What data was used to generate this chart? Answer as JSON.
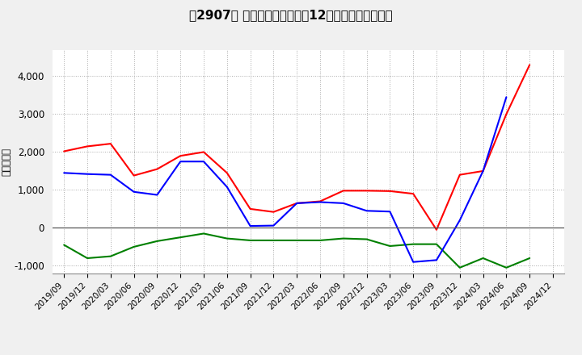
{
  "title": "　2907、 キャッシュフローの12か月移動合計の推移",
  "ylabel": "（百万円）",
  "x_labels": [
    "2019/09",
    "2019/12",
    "2020/03",
    "2020/06",
    "2020/09",
    "2020/12",
    "2021/03",
    "2021/06",
    "2021/09",
    "2021/12",
    "2022/03",
    "2022/06",
    "2022/09",
    "2022/12",
    "2023/03",
    "2023/06",
    "2023/09",
    "2023/12",
    "2024/03",
    "2024/06",
    "2024/09",
    "2024/12"
  ],
  "operating_cf": [
    2020,
    2150,
    2220,
    1380,
    1550,
    1900,
    2000,
    1450,
    500,
    420,
    650,
    700,
    980,
    980,
    970,
    900,
    -50,
    1400,
    1500,
    3000,
    4300,
    null
  ],
  "investing_cf": [
    -450,
    -800,
    -750,
    -500,
    -350,
    -250,
    -150,
    -280,
    -330,
    -330,
    -330,
    -330,
    -280,
    -300,
    -480,
    -430,
    -430,
    -1050,
    -800,
    -1050,
    -800,
    null
  ],
  "free_cf": [
    1450,
    1420,
    1400,
    950,
    870,
    1750,
    1750,
    1080,
    50,
    60,
    650,
    680,
    650,
    450,
    430,
    -900,
    -850,
    200,
    1500,
    3450,
    null,
    null
  ],
  "operating_color": "#ff0000",
  "investing_color": "#008000",
  "free_color": "#0000ff",
  "bg_color": "#f0f0f0",
  "plot_bg_color": "#ffffff",
  "ylim": [
    -1200,
    4700
  ],
  "yticks": [
    -1000,
    0,
    1000,
    2000,
    3000,
    4000
  ]
}
